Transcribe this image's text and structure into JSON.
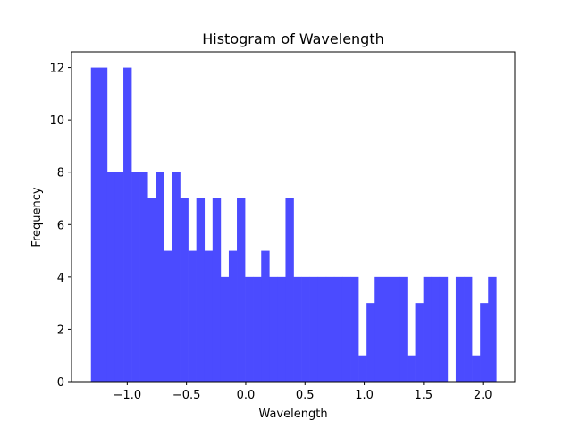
{
  "chart_data": {
    "type": "bar",
    "title": "Histogram of Wavelength",
    "xlabel": "Wavelength",
    "ylabel": "Frequency",
    "xlim": [
      -1.47,
      2.27
    ],
    "ylim": [
      0,
      12.6
    ],
    "xticks": [
      -1.0,
      -0.5,
      0.0,
      0.5,
      1.0,
      1.5,
      2.0
    ],
    "xtick_labels": [
      "−1.0",
      "−0.5",
      "0.0",
      "0.5",
      "1.0",
      "1.5",
      "2.0"
    ],
    "yticks": [
      0,
      2,
      4,
      6,
      8,
      10,
      12
    ],
    "ytick_labels": [
      "0",
      "2",
      "4",
      "6",
      "8",
      "10",
      "12"
    ],
    "bin_start": -1.306,
    "bin_width": 0.0684,
    "values": [
      12,
      12,
      8,
      8,
      12,
      8,
      8,
      7,
      8,
      5,
      8,
      7,
      5,
      7,
      5,
      7,
      4,
      5,
      7,
      4,
      4,
      5,
      4,
      4,
      7,
      4,
      4,
      4,
      4,
      4,
      4,
      4,
      4,
      1,
      3,
      4,
      4,
      4,
      4,
      1,
      3,
      4,
      4,
      4,
      0,
      4,
      4,
      1,
      3,
      4
    ],
    "bar_color": "#4b4bff",
    "grid": false,
    "legend": "none"
  }
}
